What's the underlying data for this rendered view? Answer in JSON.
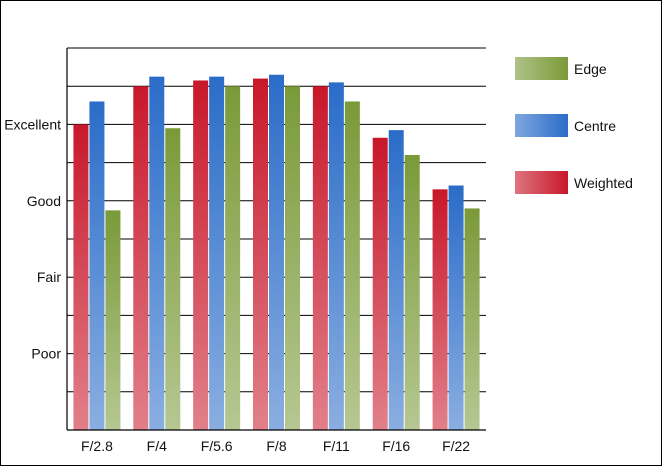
{
  "chart_data": {
    "type": "bar",
    "title": "",
    "xlabel": "",
    "ylabel": "",
    "categories": [
      "F/2.8",
      "F/4",
      "F/5.6",
      "F/8",
      "F/11",
      "F/16",
      "F/22"
    ],
    "y_tick_labels": [
      "Poor",
      "Fair",
      "Good",
      "Excellent"
    ],
    "y_tick_values": [
      2,
      4,
      6,
      8
    ],
    "ylim": [
      0,
      10
    ],
    "grid": true,
    "legend_position": "right",
    "series": [
      {
        "name": "Weighted",
        "values": [
          8.0,
          9.0,
          9.15,
          9.2,
          9.0,
          7.65,
          6.3
        ],
        "color": "#c8182a"
      },
      {
        "name": "Centre",
        "values": [
          8.6,
          9.25,
          9.25,
          9.3,
          9.1,
          7.85,
          6.4
        ],
        "color": "#2a6cc8"
      },
      {
        "name": "Edge",
        "values": [
          5.75,
          7.9,
          9.0,
          9.0,
          8.6,
          7.2,
          5.8
        ],
        "color": "#7a9a38"
      }
    ],
    "legend_order": [
      "Edge",
      "Centre",
      "Weighted"
    ]
  }
}
